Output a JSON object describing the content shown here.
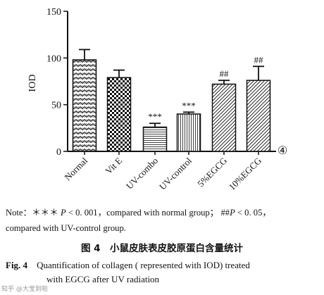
{
  "chart_data": {
    "type": "bar",
    "ylabel": "IOD",
    "ylim": [
      0,
      150
    ],
    "yticks": [
      0,
      50,
      100,
      150
    ],
    "categories": [
      "Normal",
      "Vit E",
      "UV-combo",
      "UV-control",
      "5%EGCG",
      "10%EGCG"
    ],
    "values": [
      98,
      79,
      26,
      40,
      72,
      76
    ],
    "errors": [
      11,
      8,
      4,
      2,
      4,
      15
    ],
    "patterns": [
      "zigzag",
      "checker",
      "hlines",
      "vlines",
      "diagonal",
      "diagonal"
    ],
    "annotations": [
      "",
      "",
      "***",
      "***",
      "##",
      "##"
    ],
    "panel_marker": "④"
  },
  "note": {
    "prefix": "Note：",
    "sig1_stars": "＊＊＊",
    "sig1_p": "P",
    "sig1_text": " < 0. 001，compared with normal group；",
    "sig2_hash": "##",
    "sig2_p": "P",
    "sig2_text": " < 0. 05，",
    "line2": "compared with UV-control group."
  },
  "caption_cn": "图 4　小鼠皮肤表皮胶原蛋白含量统计",
  "caption_en": {
    "label": "Fig. 4",
    "line1": "Quantification of collagen ( represented with IOD) treated",
    "line2": "with EGCG after UV radiation"
  },
  "watermark": "知乎 @大宝到啦"
}
